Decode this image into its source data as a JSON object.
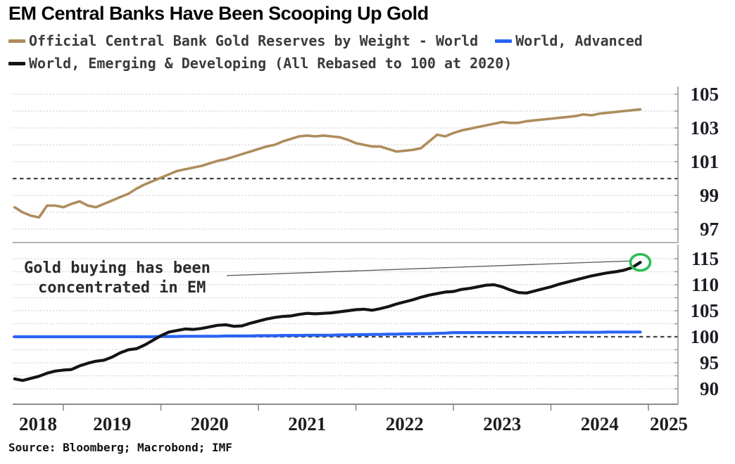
{
  "title": "EM Central Banks Have Been Scooping Up Gold",
  "legend": {
    "row1": [
      {
        "label": "Official Central Bank Gold Reserves by Weight - World",
        "color": "#ae8d5d"
      },
      {
        "label": "World, Advanced",
        "color": "#2a63f3"
      }
    ],
    "row2": [
      {
        "label": "World, Emerging & Developing (All Rebased to 100 at 2020)",
        "color": "#141414"
      }
    ]
  },
  "annotation": {
    "line1": "Gold buying has been",
    "line2": "concentrated in EM",
    "points_to": "last value of World, Emerging & Developing series",
    "circle_color": "#2dbd54"
  },
  "source": "Source: Bloomberg; Macrobond; IMF",
  "chart_data": [
    {
      "type": "line",
      "panel": "top",
      "title": "Official Central Bank Gold Reserves by Weight - World",
      "grid": "dotted",
      "grid_step": 1,
      "ref_line": 100,
      "yticks": [
        97,
        99,
        101,
        103,
        105
      ],
      "ylim": [
        96.2,
        105.45
      ],
      "x": [
        2018.5,
        2018.583,
        2018.667,
        2018.75,
        2018.833,
        2018.917,
        2019.0,
        2019.083,
        2019.167,
        2019.25,
        2019.333,
        2019.417,
        2019.5,
        2019.583,
        2019.667,
        2019.75,
        2019.833,
        2019.917,
        2020.0,
        2020.083,
        2020.167,
        2020.25,
        2020.333,
        2020.417,
        2020.5,
        2020.583,
        2020.667,
        2020.75,
        2020.833,
        2020.917,
        2021.0,
        2021.083,
        2021.167,
        2021.25,
        2021.333,
        2021.417,
        2021.5,
        2021.583,
        2021.667,
        2021.75,
        2021.833,
        2021.917,
        2022.0,
        2022.083,
        2022.167,
        2022.25,
        2022.333,
        2022.417,
        2022.5,
        2022.583,
        2022.667,
        2022.75,
        2022.833,
        2022.917,
        2023.0,
        2023.083,
        2023.167,
        2023.25,
        2023.333,
        2023.417,
        2023.5,
        2023.583,
        2023.667,
        2023.75,
        2023.833,
        2023.917,
        2024.0,
        2024.083,
        2024.167,
        2024.25,
        2024.333,
        2024.417,
        2024.5,
        2024.583,
        2024.667,
        2024.75,
        2024.833,
        2024.917
      ],
      "series": [
        {
          "name": "Official Central Bank Gold Reserves by Weight - World",
          "color": "#ae8d5d",
          "values": [
            98.3,
            98.0,
            97.8,
            97.7,
            98.4,
            98.4,
            98.3,
            98.5,
            98.65,
            98.4,
            98.3,
            98.5,
            98.7,
            98.9,
            99.1,
            99.4,
            99.65,
            99.85,
            100.05,
            100.25,
            100.45,
            100.55,
            100.65,
            100.75,
            100.9,
            101.05,
            101.15,
            101.3,
            101.45,
            101.6,
            101.75,
            101.9,
            102.0,
            102.2,
            102.35,
            102.5,
            102.55,
            102.5,
            102.55,
            102.5,
            102.45,
            102.3,
            102.1,
            102.0,
            101.9,
            101.9,
            101.75,
            101.6,
            101.65,
            101.7,
            101.8,
            102.2,
            102.6,
            102.5,
            102.7,
            102.85,
            102.95,
            103.05,
            103.15,
            103.25,
            103.35,
            103.3,
            103.3,
            103.4,
            103.45,
            103.5,
            103.55,
            103.6,
            103.65,
            103.7,
            103.8,
            103.75,
            103.85,
            103.9,
            103.95,
            104.0,
            104.05,
            104.1
          ]
        }
      ]
    },
    {
      "type": "line",
      "panel": "bottom",
      "title": "World, Advanced vs World, Emerging & Developing (All Rebased to 100 at 2020)",
      "grid": "dotted",
      "grid_step": 2.5,
      "ref_line": 100,
      "yticks": [
        90,
        95,
        100,
        105,
        110,
        115
      ],
      "ylim": [
        87.0,
        117.7
      ],
      "xticks": [
        2018,
        2019,
        2020,
        2021,
        2022,
        2023,
        2024,
        2025
      ],
      "xlim": [
        2018.48,
        2025.42
      ],
      "x": [
        2018.5,
        2018.583,
        2018.667,
        2018.75,
        2018.833,
        2018.917,
        2019.0,
        2019.083,
        2019.167,
        2019.25,
        2019.333,
        2019.417,
        2019.5,
        2019.583,
        2019.667,
        2019.75,
        2019.833,
        2019.917,
        2020.0,
        2020.083,
        2020.167,
        2020.25,
        2020.333,
        2020.417,
        2020.5,
        2020.583,
        2020.667,
        2020.75,
        2020.833,
        2020.917,
        2021.0,
        2021.083,
        2021.167,
        2021.25,
        2021.333,
        2021.417,
        2021.5,
        2021.583,
        2021.667,
        2021.75,
        2021.833,
        2021.917,
        2022.0,
        2022.083,
        2022.167,
        2022.25,
        2022.333,
        2022.417,
        2022.5,
        2022.583,
        2022.667,
        2022.75,
        2022.833,
        2022.917,
        2023.0,
        2023.083,
        2023.167,
        2023.25,
        2023.333,
        2023.417,
        2023.5,
        2023.583,
        2023.667,
        2023.75,
        2023.833,
        2023.917,
        2024.0,
        2024.083,
        2024.167,
        2024.25,
        2024.333,
        2024.417,
        2024.5,
        2024.583,
        2024.667,
        2024.75,
        2024.833,
        2024.917
      ],
      "series": [
        {
          "name": "World, Advanced",
          "color": "#2a63f3",
          "values": [
            100.0,
            100.0,
            100.0,
            100.0,
            100.0,
            100.0,
            100.0,
            100.0,
            100.0,
            100.0,
            100.0,
            100.0,
            100.0,
            100.0,
            100.0,
            100.0,
            100.0,
            100.0,
            100.05,
            100.05,
            100.05,
            100.1,
            100.1,
            100.1,
            100.1,
            100.1,
            100.15,
            100.15,
            100.15,
            100.15,
            100.2,
            100.2,
            100.2,
            100.25,
            100.25,
            100.25,
            100.3,
            100.3,
            100.3,
            100.3,
            100.35,
            100.35,
            100.4,
            100.4,
            100.45,
            100.45,
            100.5,
            100.5,
            100.55,
            100.55,
            100.6,
            100.6,
            100.65,
            100.7,
            100.8,
            100.8,
            100.8,
            100.8,
            100.8,
            100.8,
            100.8,
            100.8,
            100.8,
            100.8,
            100.8,
            100.8,
            100.8,
            100.8,
            100.85,
            100.85,
            100.85,
            100.85,
            100.85,
            100.9,
            100.9,
            100.9,
            100.9,
            100.9
          ]
        },
        {
          "name": "World, Emerging & Developing",
          "color": "#141414",
          "values": [
            91.9,
            91.6,
            92.0,
            92.4,
            93.0,
            93.4,
            93.6,
            93.7,
            94.4,
            94.9,
            95.3,
            95.5,
            96.1,
            96.9,
            97.5,
            97.7,
            98.4,
            99.3,
            100.2,
            100.9,
            101.2,
            101.5,
            101.4,
            101.6,
            101.9,
            102.2,
            102.3,
            102.0,
            102.1,
            102.6,
            103.0,
            103.4,
            103.7,
            103.9,
            104.0,
            104.3,
            104.5,
            104.4,
            104.5,
            104.6,
            104.8,
            105.0,
            105.2,
            105.3,
            105.1,
            105.4,
            105.8,
            106.3,
            106.7,
            107.1,
            107.6,
            108.0,
            108.3,
            108.6,
            108.7,
            109.1,
            109.3,
            109.6,
            109.9,
            110.0,
            109.6,
            109.0,
            108.5,
            108.4,
            108.8,
            109.2,
            109.6,
            110.1,
            110.5,
            110.9,
            111.3,
            111.7,
            112.0,
            112.3,
            112.5,
            112.8,
            113.3,
            114.3
          ]
        }
      ],
      "highlight_last": {
        "series": "World, Emerging & Developing",
        "marker": "green-circle",
        "color": "#2dbd54"
      }
    }
  ]
}
